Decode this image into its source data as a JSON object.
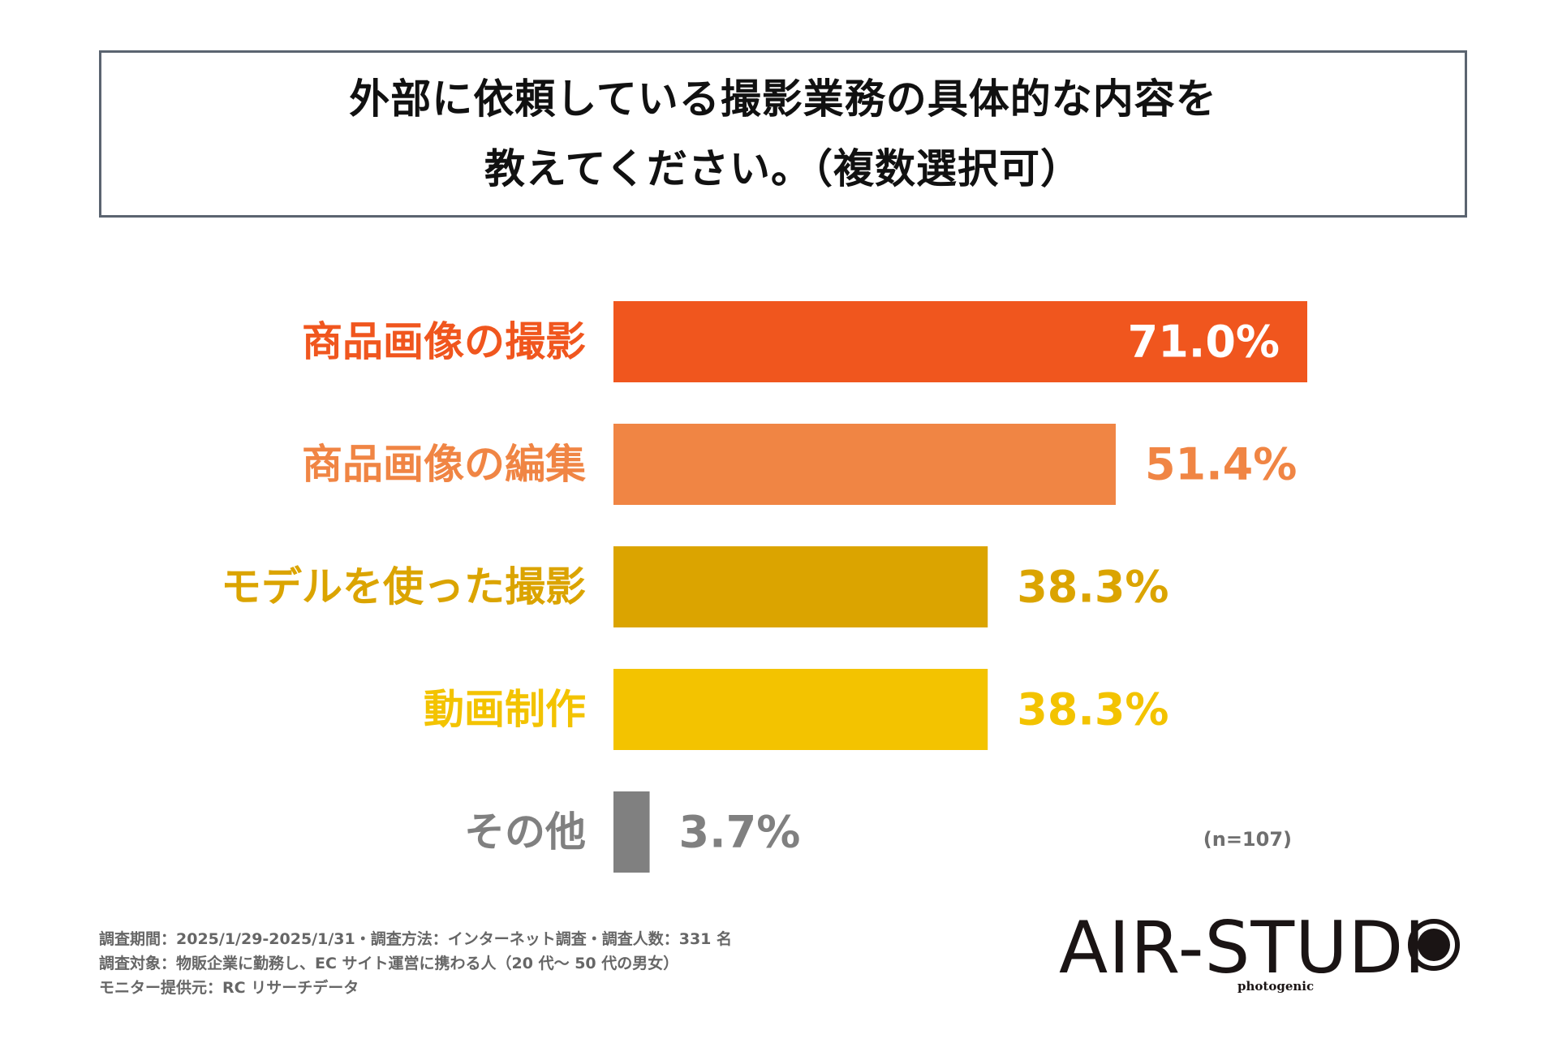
{
  "title": {
    "line1": "外部に依頼している撮影業務の具体的な内容を",
    "line2": "教えてください。（複数選択可）"
  },
  "chart_data": {
    "type": "bar",
    "orientation": "horizontal",
    "categories": [
      "商品画像の撮影",
      "商品画像の編集",
      "モデルを使った撮影",
      "動画制作",
      "その他"
    ],
    "values": [
      71.0,
      51.4,
      38.3,
      38.3,
      3.7
    ],
    "value_labels": [
      "71.0%",
      "51.4%",
      "38.3%",
      "38.3%",
      "3.7%"
    ],
    "colors": [
      "#f0561e",
      "#f08544",
      "#dba400",
      "#f3c300",
      "#808080"
    ],
    "label_colors": [
      "#f0561e",
      "#f08544",
      "#dba400",
      "#f3c300",
      "#808080"
    ],
    "value_inside": [
      true,
      false,
      false,
      false,
      false
    ],
    "inside_value_color": "#ffffff",
    "xlim": [
      0,
      71.0
    ],
    "grid": false,
    "legend": "none"
  },
  "note": "(n=107)",
  "footer": {
    "line1": "調査期間：2025/1/29-2025/1/31・調査方法：インターネット調査・調査人数：331 名",
    "line2": "調査対象：物販企業に勤務し、EC サイト運営に携わる人（20 代〜 50 代の男女）",
    "line3": "モニター提供元：RC リサーチデータ"
  },
  "logo": {
    "text": "AIR-STUDI",
    "sub": "photogenic"
  }
}
